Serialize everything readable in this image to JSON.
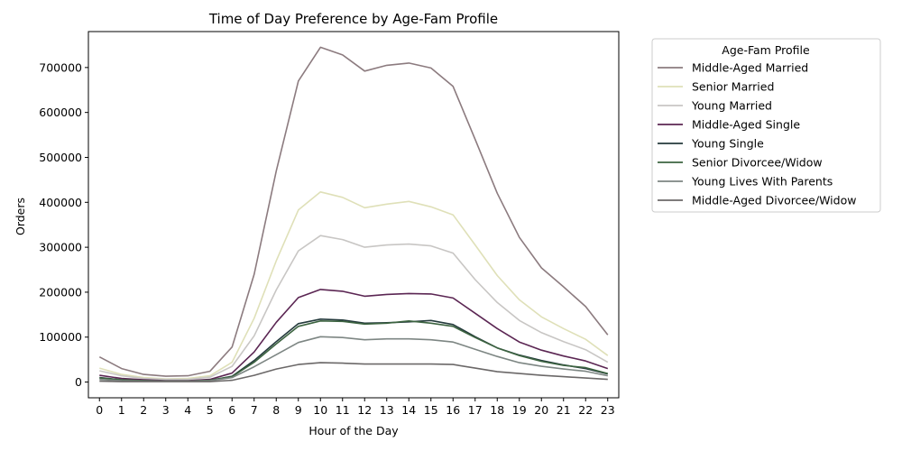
{
  "chart_data": {
    "type": "line",
    "title": "Time of Day Preference by Age-Fam Profile",
    "xlabel": "Hour of the Day",
    "ylabel": "Orders",
    "x": [
      0,
      1,
      2,
      3,
      4,
      5,
      6,
      7,
      8,
      9,
      10,
      11,
      12,
      13,
      14,
      15,
      16,
      17,
      18,
      19,
      20,
      21,
      22,
      23
    ],
    "xlim": [
      -0.5,
      23.5
    ],
    "ylim": [
      -35000,
      780000
    ],
    "yticks": [
      0,
      100000,
      200000,
      300000,
      400000,
      500000,
      600000,
      700000
    ],
    "grid": false,
    "legend": {
      "title": "Age-Fam Profile",
      "placement": "outside-top-right"
    },
    "series": [
      {
        "name": "Middle-Aged Married",
        "color": "#8c7b7f",
        "values": [
          56000,
          30000,
          17000,
          13000,
          14000,
          24000,
          78000,
          240000,
          470000,
          670000,
          745000,
          728000,
          692000,
          705000,
          710000,
          699000,
          658000,
          540000,
          420000,
          322000,
          254000,
          212000,
          168000,
          105000
        ]
      },
      {
        "name": "Senior Married",
        "color": "#dfe0b8",
        "values": [
          31000,
          17000,
          10000,
          7000,
          8000,
          14000,
          44000,
          142000,
          270000,
          383000,
          423000,
          411000,
          388000,
          396000,
          402000,
          390000,
          372000,
          305000,
          237000,
          183000,
          145000,
          119000,
          95000,
          59000
        ]
      },
      {
        "name": "Young Married",
        "color": "#c8c6c4",
        "values": [
          25000,
          14000,
          8000,
          6000,
          6000,
          11000,
          35000,
          103000,
          205000,
          292000,
          326000,
          317000,
          300000,
          305000,
          307000,
          303000,
          287000,
          228000,
          177000,
          137000,
          110000,
          90000,
          72000,
          44000
        ]
      },
      {
        "name": "Middle-Aged Single",
        "color": "#5b2653",
        "values": [
          15000,
          8000,
          5000,
          3000,
          3000,
          6000,
          20000,
          67000,
          133000,
          188000,
          206000,
          202000,
          191000,
          195000,
          197000,
          196000,
          187000,
          153000,
          119000,
          89000,
          71000,
          58000,
          47000,
          30000
        ]
      },
      {
        "name": "Young Single",
        "color": "#243a3c",
        "values": [
          10000,
          5000,
          3000,
          2000,
          2000,
          4000,
          13000,
          48000,
          90000,
          130000,
          140000,
          138000,
          131000,
          132000,
          134000,
          137000,
          128000,
          101000,
          76000,
          60000,
          48000,
          38000,
          30000,
          18000
        ]
      },
      {
        "name": "Senior Divorcee/Widow",
        "color": "#3d6441",
        "values": [
          9000,
          5000,
          3000,
          2000,
          2000,
          4000,
          12000,
          44000,
          85000,
          124000,
          136000,
          135000,
          129000,
          131000,
          136000,
          131000,
          124000,
          99000,
          76000,
          59000,
          46000,
          37000,
          32000,
          19000
        ]
      },
      {
        "name": "Young Lives With Parents",
        "color": "#7d8683",
        "values": [
          6000,
          3000,
          2000,
          2000,
          2000,
          3000,
          10000,
          34000,
          61000,
          88000,
          101000,
          99000,
          94000,
          96000,
          96000,
          94000,
          89000,
          73000,
          57000,
          43000,
          35000,
          29000,
          24000,
          14000
        ]
      },
      {
        "name": "Middle-Aged Divorcee/Widow",
        "color": "#6b6868",
        "values": [
          2000,
          1000,
          1000,
          1000,
          1000,
          1000,
          4000,
          15000,
          29000,
          39000,
          43000,
          42000,
          40000,
          40000,
          40000,
          40000,
          39000,
          31000,
          23000,
          19000,
          15000,
          12000,
          9000,
          6000
        ]
      }
    ]
  }
}
